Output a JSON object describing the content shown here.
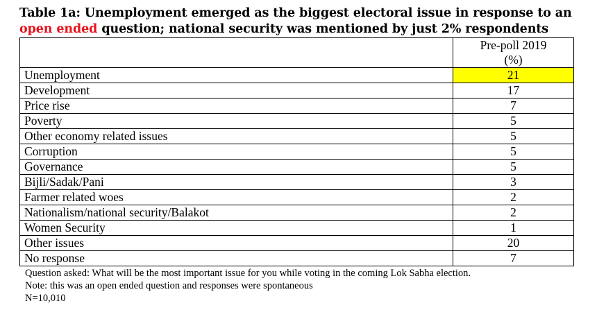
{
  "title": {
    "line1": "Table 1a: Unemployment emerged as the biggest electoral issue in response to an",
    "line2_red": "open ended",
    "line2_rest": " question; national security was mentioned by just 2% respondents"
  },
  "table": {
    "header": {
      "col1": "",
      "col2_line1": "Pre-poll 2019",
      "col2_line2": "(%)"
    },
    "rows": [
      {
        "issue": "Unemployment",
        "value": "21"
      },
      {
        "issue": "Development",
        "value": "17"
      },
      {
        "issue": "Price rise",
        "value": "7"
      },
      {
        "issue": "Poverty",
        "value": "5"
      },
      {
        "issue": "Other economy related issues",
        "value": "5"
      },
      {
        "issue": "Corruption",
        "value": "5"
      },
      {
        "issue": "Governance",
        "value": "5"
      },
      {
        "issue": "Bijli/Sadak/Pani",
        "value": "3"
      },
      {
        "issue": "Farmer related woes",
        "value": "2"
      },
      {
        "issue": "Nationalism/national security/Balakot",
        "value": "2"
      },
      {
        "issue": "Women Security",
        "value": "1"
      },
      {
        "issue": "Other issues",
        "value": "20"
      },
      {
        "issue": "No response",
        "value": "7"
      }
    ],
    "highlight_color": "#ffff00"
  },
  "notes": {
    "question": "Question asked: What will be the most important issue for you while voting in the coming Lok Sabha election.",
    "note": "Note: this was an open ended question and responses were spontaneous",
    "sample": "N=10,010"
  },
  "colors": {
    "title_accent": "#e8121b"
  }
}
